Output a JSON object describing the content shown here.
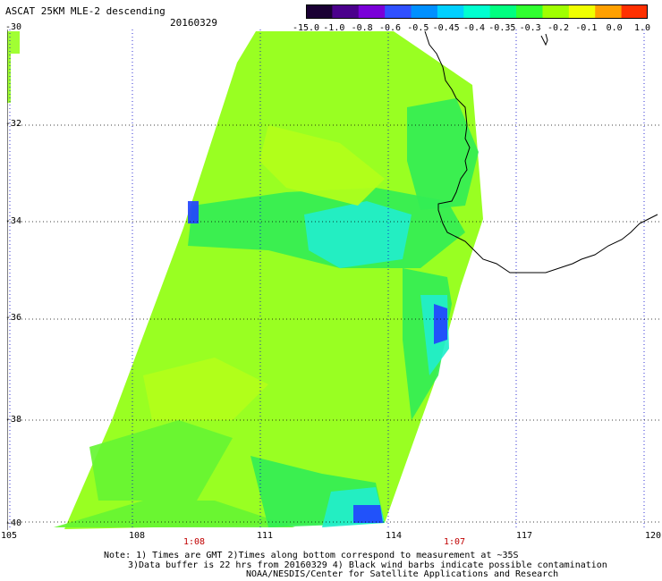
{
  "title": "ASCAT 25KM MLE-2 descending",
  "date": "20160329",
  "colorbar": {
    "ticks": [
      "-15.0",
      "-1.0",
      "-0.8",
      "-0.6",
      "-0.5",
      "-0.45",
      "-0.4",
      "-0.35",
      "-0.3",
      "-0.2",
      "-0.1",
      "0.0",
      "1.0"
    ],
    "colors": [
      "#1a0033",
      "#4b008c",
      "#7a00d8",
      "#3050ff",
      "#0090ff",
      "#00d0ff",
      "#00ffd0",
      "#00ff80",
      "#30ff30",
      "#a0ff00",
      "#f0ff00",
      "#ffa000",
      "#ff3000"
    ]
  },
  "map": {
    "lon_range": [
      105,
      120
    ],
    "lat_range": [
      -40,
      -30
    ],
    "lat_labels": [
      "-30",
      "-32",
      "-34",
      "-36",
      "-38",
      "-40"
    ],
    "lon_labels": [
      "105",
      "108",
      "111",
      "114",
      "117",
      "120"
    ],
    "swath_colors": {
      "base": "#99ff22",
      "mid": "#66f533",
      "green": "#33ee55",
      "cyan": "#22eecc",
      "blue": "#2244ff",
      "lime": "#b3ff1a"
    },
    "grid_color": "#0000cc",
    "coast_color": "#000000"
  },
  "time_labels": [
    "1:08",
    "1:07"
  ],
  "notes": [
    "Note: 1) Times are GMT 2)Times along bottom correspond to measurement at ~35S",
    "3)Data buffer is 22 hrs from 20160329 4) Black wind barbs indicate possible contamination",
    "NOAA/NESDIS/Center for Satellite Applications and Research"
  ]
}
